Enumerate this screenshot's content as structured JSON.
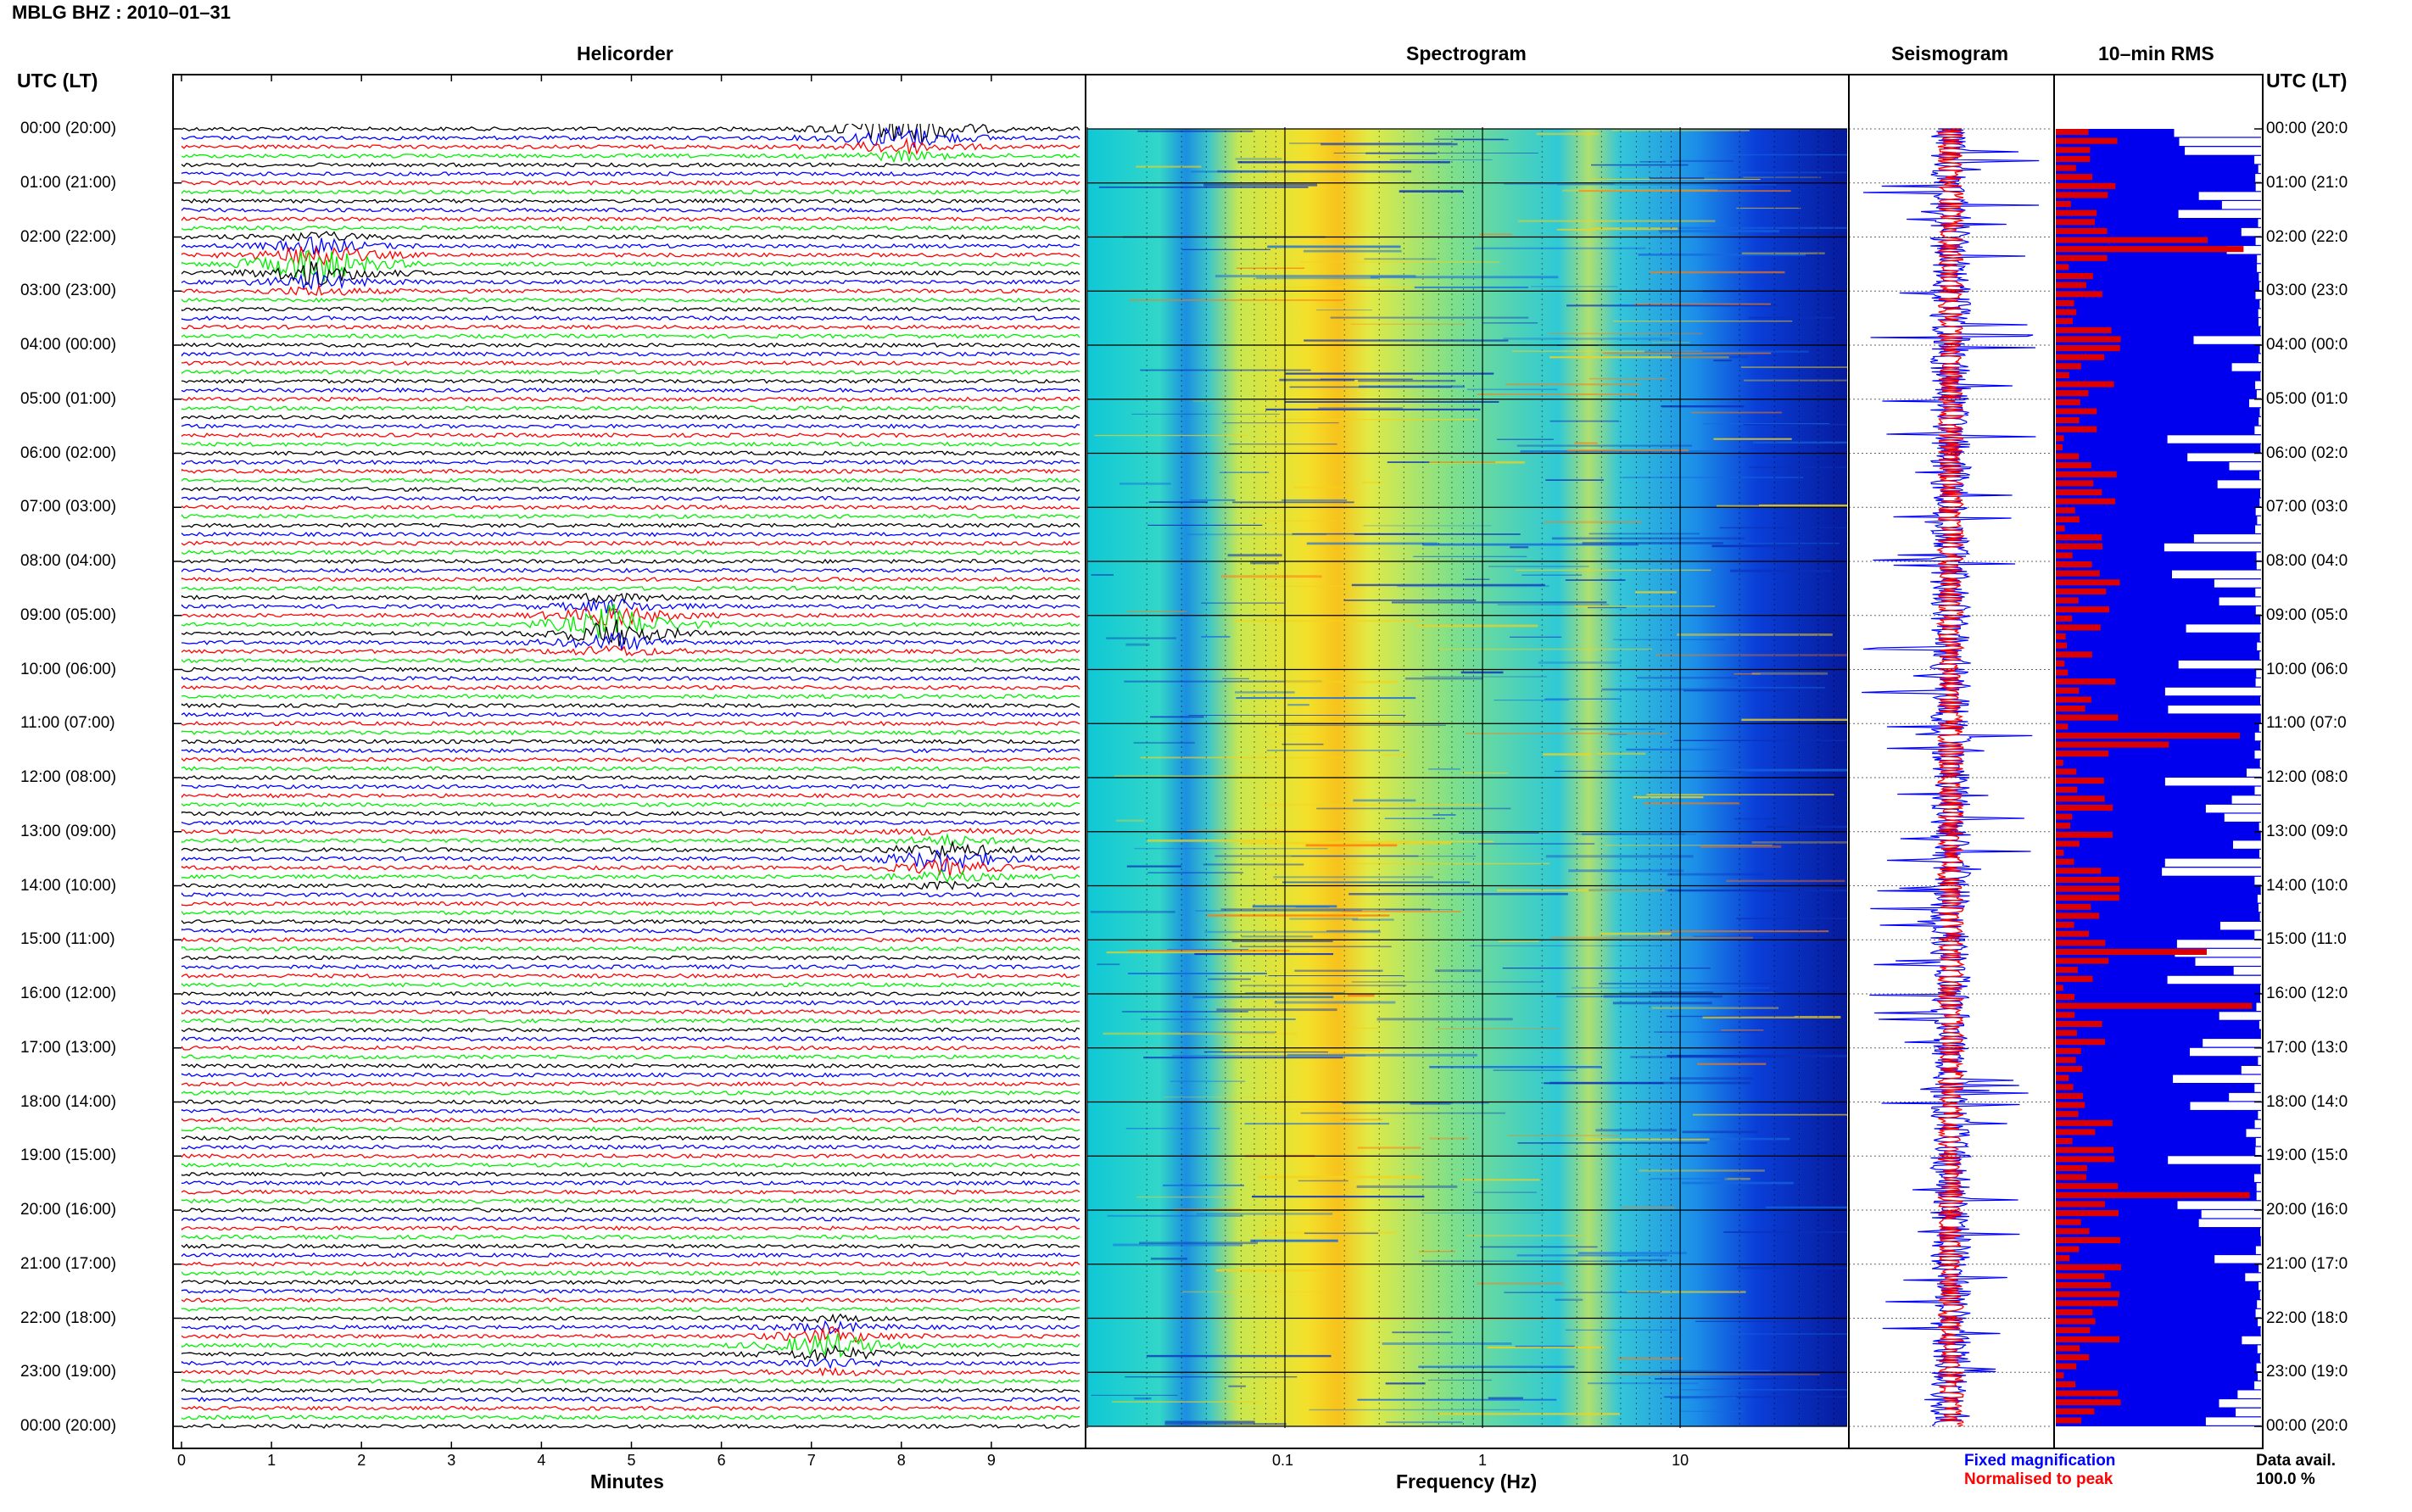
{
  "header": {
    "station_title": "MBLG BHZ : 2010–01–31",
    "left_axis_title": "UTC (LT)",
    "right_axis_title": "UTC (LT)"
  },
  "panels": {
    "helicorder": "Helicorder",
    "spectrogram": "Spectrogram",
    "seismogram": "Seismogram",
    "rms": "10–min RMS"
  },
  "hour_labels": [
    "00:00 (20:00)",
    "01:00 (21:00)",
    "02:00 (22:00)",
    "03:00 (23:00)",
    "04:00 (00:00)",
    "05:00 (01:00)",
    "06:00 (02:00)",
    "07:00 (03:00)",
    "08:00 (04:00)",
    "09:00 (05:00)",
    "10:00 (06:00)",
    "11:00 (07:00)",
    "12:00 (08:00)",
    "13:00 (09:00)",
    "14:00 (10:00)",
    "15:00 (11:00)",
    "16:00 (12:00)",
    "17:00 (13:00)",
    "18:00 (14:00)",
    "19:00 (15:00)",
    "20:00 (16:00)",
    "21:00 (17:00)",
    "22:00 (18:00)",
    "23:00 (19:00)",
    "00:00 (20:00)"
  ],
  "right_hour_labels": [
    "00:00 (20:0",
    "01:00 (21:0",
    "02:00 (22:0",
    "03:00 (23:0",
    "04:00 (00:0",
    "05:00 (01:0",
    "06:00 (02:0",
    "07:00 (03:0",
    "08:00 (04:0",
    "09:00 (05:0",
    "10:00 (06:0",
    "11:00 (07:0",
    "12:00 (08:0",
    "13:00 (09:0",
    "14:00 (10:0",
    "15:00 (11:0",
    "16:00 (12:0",
    "17:00 (13:0",
    "18:00 (14:0",
    "19:00 (15:0",
    "20:00 (16:0",
    "21:00 (17:0",
    "22:00 (18:0",
    "23:00 (19:0",
    "00:00 (20:0"
  ],
  "legend": {
    "fixed": "Fixed magnification",
    "normalised": "Normalised to peak",
    "data_avail_label": "Data avail.",
    "data_avail_value": "100.0 %"
  },
  "colors": {
    "black": "#000000",
    "blue": "#0000ff",
    "red": "#ff0000",
    "green": "#00ee00",
    "spec_low": "#00007f",
    "spec_mid": "#1ec8d8",
    "spec_high": "#f0e020",
    "spec_peak": "#ff6a00"
  },
  "chart_data": [
    {
      "type": "helicorder",
      "title": "Helicorder",
      "xlabel": "Minutes",
      "x_ticks": [
        0,
        1,
        2,
        3,
        4,
        5,
        6,
        7,
        8,
        9
      ],
      "xlim": [
        0,
        10
      ],
      "lines_per_hour": 6,
      "line_colors": [
        "black",
        "blue",
        "red",
        "green"
      ],
      "notable_events_minute": [
        {
          "hour": 0.0,
          "minute": 8.0,
          "amplitude": "high"
        },
        {
          "hour": 2.5,
          "minute": 1.5,
          "amplitude": "high"
        },
        {
          "hour": 9.2,
          "minute": 4.8,
          "amplitude": "high"
        },
        {
          "hour": 13.5,
          "minute": 8.5,
          "amplitude": "medium"
        },
        {
          "hour": 22.5,
          "minute": 7.2,
          "amplitude": "medium"
        }
      ]
    },
    {
      "type": "heatmap",
      "title": "Spectrogram",
      "xlabel": "Frequency (Hz)",
      "x_scale": "log",
      "x_ticks": [
        0.1,
        1,
        10
      ],
      "x_tick_labels": [
        "0.1",
        "1",
        "10"
      ],
      "xlim": [
        0.01,
        70
      ],
      "ylim_hours": [
        0,
        24
      ],
      "energy_band_hz": [
        0.15,
        0.35
      ],
      "secondary_band_hz": [
        3,
        6
      ],
      "low_energy_above_hz": 15
    },
    {
      "type": "line",
      "title": "Seismogram",
      "series": [
        {
          "name": "Fixed magnification",
          "color": "blue"
        },
        {
          "name": "Normalised to peak",
          "color": "red"
        }
      ]
    },
    {
      "type": "bar",
      "title": "10–min RMS",
      "orientation": "horizontal",
      "bins_per_hour": 6,
      "ylim_hours": [
        0,
        24
      ],
      "series": [
        {
          "color": "red",
          "note": "left-anchored"
        },
        {
          "color": "blue",
          "note": "right-anchored"
        }
      ],
      "data_availability_percent": 100.0
    }
  ]
}
